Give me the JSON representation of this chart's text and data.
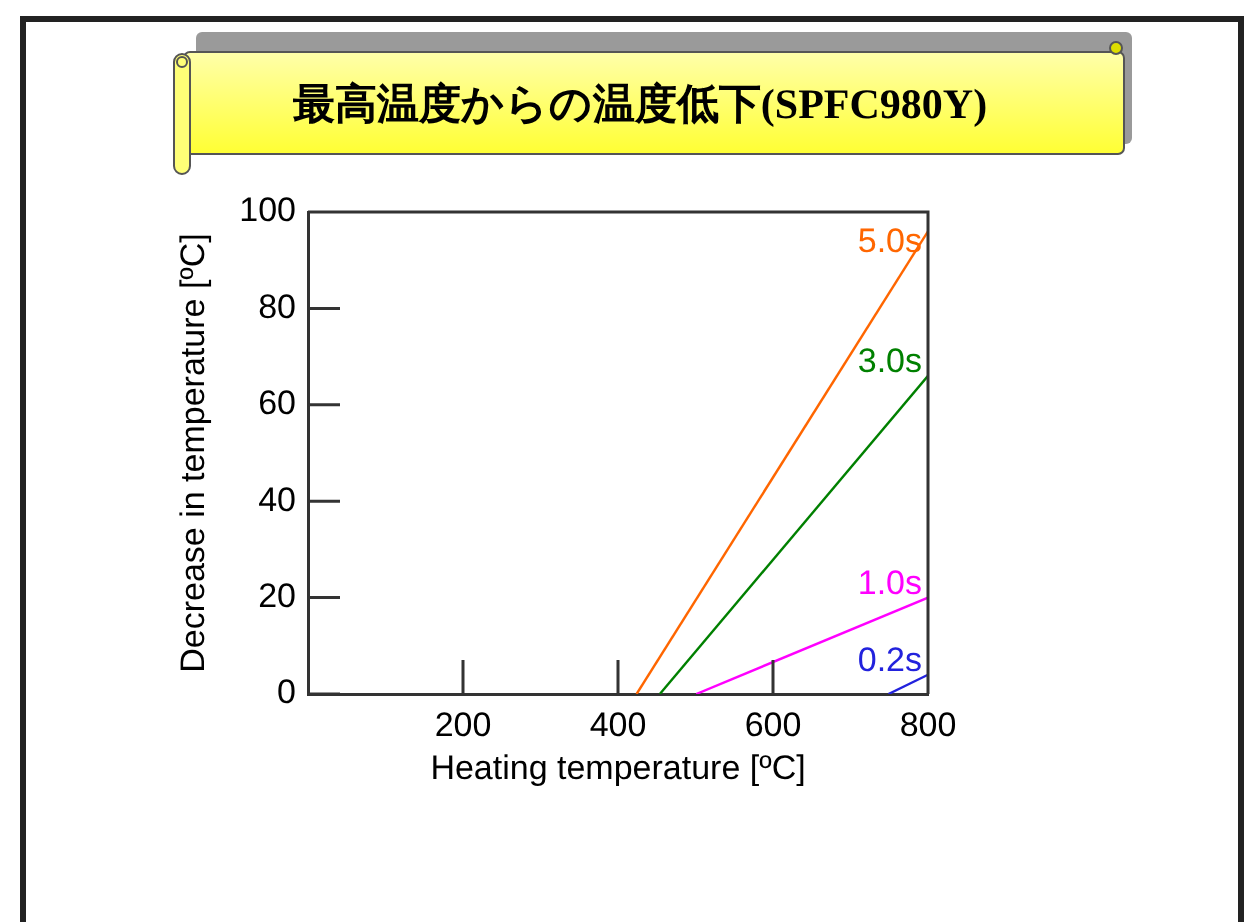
{
  "chart_data": {
    "type": "line",
    "title": "最高温度からの温度低下(SPFC980Y)",
    "xlabel": "Heating temperature [ºC]",
    "ylabel": "Decrease in temperature [ºC]",
    "xlim": [
      0,
      800
    ],
    "ylim": [
      0,
      100
    ],
    "xticks": [
      200,
      400,
      600,
      800
    ],
    "yticks": [
      0,
      20,
      40,
      60,
      80,
      100
    ],
    "grid": false,
    "legend": false,
    "marker": "none",
    "line_style": "solid",
    "series": [
      {
        "name": "5.0s",
        "color": "#ff6600",
        "x": [
          424,
          800
        ],
        "values": [
          0,
          96
        ]
      },
      {
        "name": "3.0s",
        "color": "#008000",
        "x": [
          454,
          800
        ],
        "values": [
          0,
          66
        ]
      },
      {
        "name": "1.0s",
        "color": "#ff00ff",
        "x": [
          501,
          800
        ],
        "values": [
          0,
          20
        ]
      },
      {
        "name": "0.2s",
        "color": "#2222dd",
        "x": [
          749,
          800
        ],
        "values": [
          0,
          4
        ]
      }
    ]
  }
}
